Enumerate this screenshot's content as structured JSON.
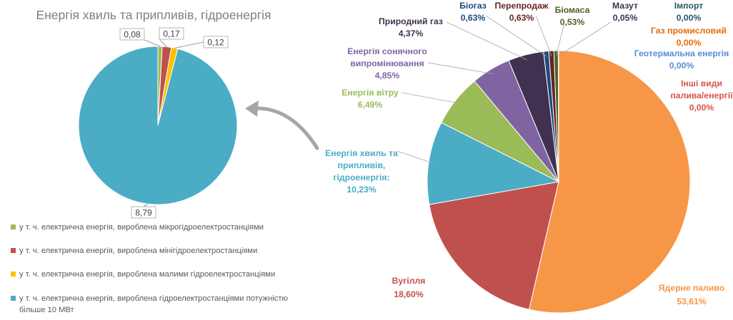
{
  "chart_data": [
    {
      "type": "pie",
      "title": "Енергія хвиль та припливів, гідроенергія",
      "legend_position": "bottom",
      "slices": [
        {
          "name": "у т. ч. електрична енергія, вироблена мікрогідроелектростанціями",
          "value": 0.08,
          "label": "0,08",
          "color": "#9bbb59"
        },
        {
          "name": "у т. ч. електрична енергія, вироблена мінігідроелектростанціями",
          "value": 0.17,
          "label": "0,17",
          "color": "#c0504d"
        },
        {
          "name": "у т. ч. електрична енергія, вироблена малими гідроелектростанціями",
          "value": 0.12,
          "label": "0,12",
          "color": "#ffc000"
        },
        {
          "name": "у т. ч. електрична енергія, вироблена гідроелектростанціями потужністю",
          "name_line2": "більше 10 МВт",
          "value": 8.79,
          "label": "8,79",
          "color": "#4bacc6"
        }
      ]
    },
    {
      "type": "pie",
      "title": "",
      "slices": [
        {
          "name": "Ядерне паливо",
          "value": 53.61,
          "label": "53,61%",
          "color": "#f79646"
        },
        {
          "name": "Вугілля",
          "value": 18.6,
          "label": "18,60%",
          "color": "#c0504d"
        },
        {
          "name": "Енергія хвиль та припливів, гідроенергія:",
          "value": 10.23,
          "label": "10,23%",
          "color": "#4bacc6"
        },
        {
          "name": "Енергія вітру",
          "value": 6.49,
          "label": "6,49%",
          "color": "#9bbb59"
        },
        {
          "name": "Енергія сонячного випромінювання",
          "value": 4.85,
          "label": "4,85%",
          "color": "#8064a2"
        },
        {
          "name": "Природний газ",
          "value": 4.37,
          "label": "4,37%",
          "color": "#403151"
        },
        {
          "name": "Біогаз",
          "value": 0.63,
          "label": "0,63%",
          "color": "#1f497d"
        },
        {
          "name": "Перепродаж",
          "value": 0.63,
          "label": "0,63%",
          "color": "#632523"
        },
        {
          "name": "Біомаса",
          "value": 0.53,
          "label": "0,53%",
          "color": "#4f6228"
        },
        {
          "name": "Мазут",
          "value": 0.05,
          "label": "0,05%",
          "color": "#3f3151"
        },
        {
          "name": "Імпорт",
          "value": 0.0,
          "label": "0,00%",
          "color": "#215968"
        },
        {
          "name": "Газ промисловий",
          "value": 0.0,
          "label": "0,00%",
          "color": "#e46c0a"
        },
        {
          "name": "Геотермальна енергія",
          "value": 0.0,
          "label": "0,00%",
          "color": "#558ed5"
        },
        {
          "name": "Інші види палива/енергії",
          "value": 0.0,
          "label": "0,00%",
          "color": "#d9534f"
        }
      ]
    }
  ]
}
